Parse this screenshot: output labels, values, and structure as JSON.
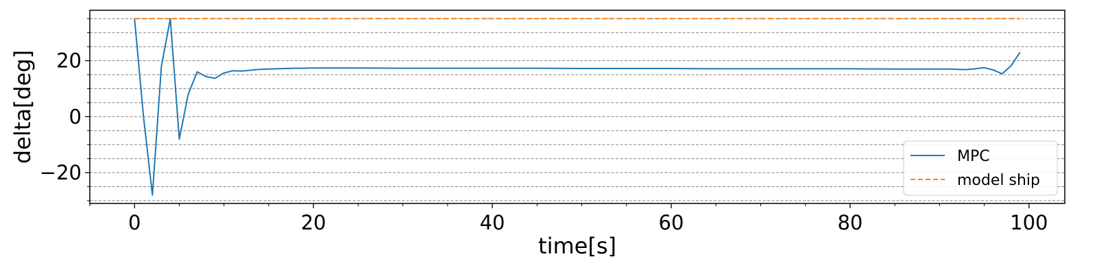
{
  "chart_data": {
    "type": "line",
    "title": "",
    "xlabel": "time[s]",
    "ylabel": "delta[deg]",
    "xlim": [
      -5,
      104
    ],
    "ylim": [
      -31,
      38
    ],
    "xticks": [
      0,
      20,
      40,
      60,
      80,
      100
    ],
    "yticks": [
      -20,
      0,
      20
    ],
    "grid": {
      "axis": "y",
      "style": "dashed",
      "minor_step": 5
    },
    "legend": {
      "position": "lower-right"
    },
    "colors": {
      "mpc": "#1f77b4",
      "model_ship": "#ff7f0e",
      "grid": "#808080"
    },
    "series": [
      {
        "name": "MPC",
        "style": "solid",
        "x": [
          0,
          1,
          2,
          3,
          4,
          5,
          6,
          7,
          8,
          9,
          10,
          11,
          12,
          13,
          14,
          15,
          16,
          17,
          18,
          19,
          20,
          22,
          25,
          30,
          35,
          40,
          45,
          50,
          55,
          60,
          65,
          70,
          75,
          80,
          85,
          90,
          91,
          92,
          93,
          94,
          95,
          96,
          97,
          98,
          99
        ],
        "y": [
          35,
          0,
          -28,
          18,
          35,
          -8,
          8,
          16,
          14.3,
          13.7,
          15.6,
          16.4,
          16.3,
          16.6,
          16.9,
          17.0,
          17.1,
          17.2,
          17.3,
          17.3,
          17.4,
          17.4,
          17.4,
          17.3,
          17.3,
          17.3,
          17.3,
          17.2,
          17.2,
          17.2,
          17.1,
          17.1,
          17.1,
          17.1,
          17.0,
          17.0,
          17.0,
          16.9,
          16.8,
          17.1,
          17.5,
          16.7,
          15.3,
          18.2,
          23.0
        ]
      },
      {
        "name": "model ship",
        "style": "dashed",
        "x": [
          0,
          99
        ],
        "y": [
          35,
          35
        ]
      }
    ]
  }
}
